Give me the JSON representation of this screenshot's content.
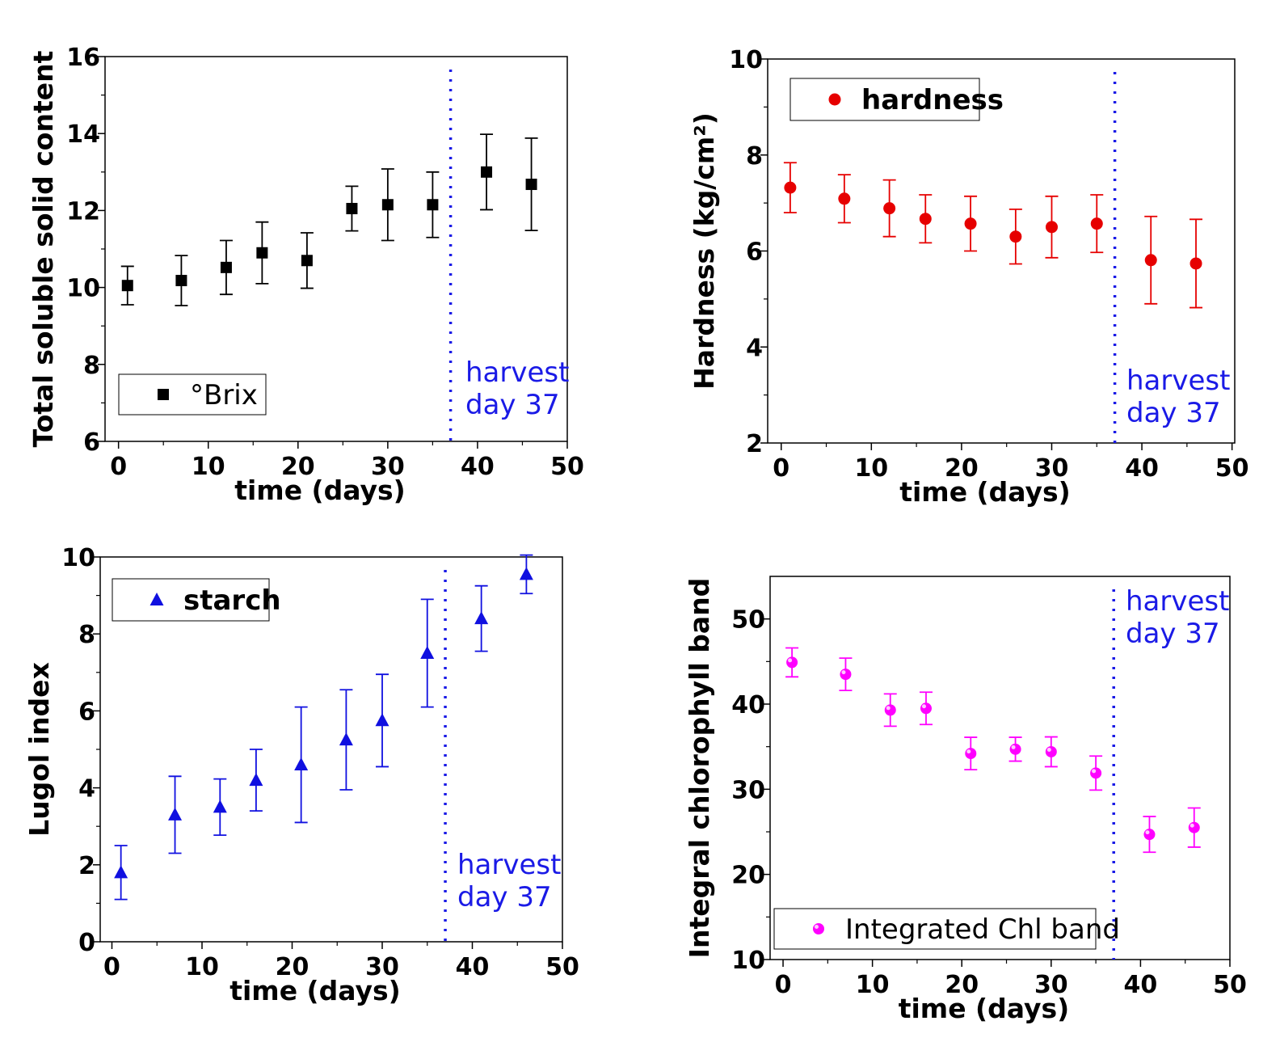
{
  "chart_data": [
    {
      "type": "scatter",
      "xlabel": "time (days)",
      "ylabel": "Total soluble solid content",
      "xlim": [
        0,
        50
      ],
      "ylim": [
        6,
        16
      ],
      "xticks": [
        0,
        10,
        20,
        30,
        40,
        50
      ],
      "yticks": [
        6,
        8,
        10,
        12,
        14,
        16
      ],
      "legend": {
        "label": "°Brix",
        "placement": "bottom-left"
      },
      "marker": "square",
      "color": "#000000",
      "x": [
        1,
        7,
        12,
        16,
        21,
        26,
        30,
        35,
        41,
        46
      ],
      "y": [
        10.05,
        10.18,
        10.52,
        10.9,
        10.7,
        12.05,
        12.15,
        12.15,
        13.0,
        12.68
      ],
      "yerr": [
        0.5,
        0.65,
        0.7,
        0.8,
        0.72,
        0.58,
        0.93,
        0.85,
        0.98,
        1.2
      ],
      "vline": {
        "x": 37,
        "color": "#1a1ae6",
        "label": [
          "harvest",
          "day 37"
        ]
      }
    },
    {
      "type": "scatter",
      "xlabel": "time (days)",
      "ylabel": "Hardness (kg/cm²)",
      "xlim": [
        0,
        50
      ],
      "ylim": [
        2,
        10
      ],
      "xticks": [
        0,
        10,
        20,
        30,
        40,
        50
      ],
      "yticks": [
        2,
        4,
        6,
        8,
        10
      ],
      "legend": {
        "label": "hardness",
        "placement": "top-left"
      },
      "marker": "circle",
      "color": "#e60000",
      "x": [
        1,
        7,
        12,
        16,
        21,
        26,
        30,
        35,
        41,
        46
      ],
      "y": [
        7.32,
        7.09,
        6.89,
        6.67,
        6.57,
        6.3,
        6.5,
        6.57,
        5.81,
        5.74
      ],
      "yerr": [
        0.52,
        0.5,
        0.59,
        0.5,
        0.57,
        0.57,
        0.64,
        0.6,
        0.91,
        0.92
      ],
      "vline": {
        "x": 37,
        "color": "#1a1ae6",
        "label": [
          "harvest",
          "day 37"
        ]
      }
    },
    {
      "type": "scatter",
      "xlabel": "time (days)",
      "ylabel": "Lugol index",
      "xlim": [
        0,
        50
      ],
      "ylim": [
        0,
        10
      ],
      "xticks": [
        0,
        10,
        20,
        30,
        40,
        50
      ],
      "yticks": [
        0,
        2,
        4,
        6,
        8,
        10
      ],
      "legend": {
        "label": "starch",
        "placement": "top-left"
      },
      "marker": "triangle",
      "color": "#1010e0",
      "x": [
        1,
        7,
        12,
        16,
        21,
        26,
        30,
        35,
        41,
        46
      ],
      "y": [
        1.8,
        3.3,
        3.5,
        4.2,
        4.6,
        5.25,
        5.75,
        7.5,
        8.4,
        9.55
      ],
      "yerr": [
        0.7,
        1.0,
        0.73,
        0.8,
        1.5,
        1.3,
        1.2,
        1.4,
        0.85,
        0.5
      ],
      "vline": {
        "x": 37,
        "color": "#1a1ae6",
        "label": [
          "harvest",
          "day 37"
        ]
      }
    },
    {
      "type": "scatter",
      "xlabel": "time (days)",
      "ylabel": "Integral chlorophyll band",
      "xlim": [
        0,
        50
      ],
      "ylim": [
        10,
        55
      ],
      "xticks": [
        0,
        10,
        20,
        30,
        40,
        50
      ],
      "yticks": [
        10,
        20,
        30,
        40,
        50
      ],
      "legend": {
        "label": "Integrated Chl band",
        "placement": "bottom-left"
      },
      "marker": "sphere",
      "color": "#ff00ff",
      "x": [
        1,
        7,
        12,
        16,
        21,
        26,
        30,
        35,
        41,
        46
      ],
      "y": [
        44.9,
        43.5,
        39.3,
        39.5,
        34.2,
        34.7,
        34.4,
        31.9,
        24.7,
        25.5
      ],
      "yerr": [
        1.7,
        1.9,
        1.9,
        1.9,
        1.9,
        1.4,
        1.75,
        2.0,
        2.1,
        2.3
      ],
      "vline": {
        "x": 37,
        "color": "#1a1ae6",
        "label": [
          "harvest",
          "day 37"
        ]
      }
    }
  ]
}
